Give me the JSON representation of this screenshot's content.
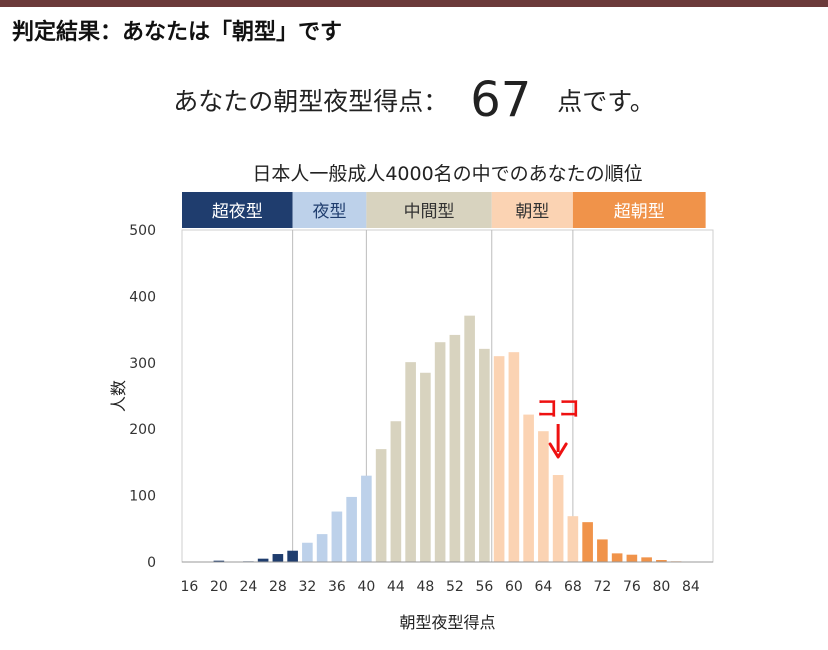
{
  "header": {
    "title": "判定結果：あなたは「朝型」です"
  },
  "score": {
    "prefix": "あなたの朝型夜型得点：",
    "value": "67",
    "suffix": "点です。"
  },
  "chart_data": {
    "type": "bar",
    "title": "日本人一般成人4000名の中でのあなたの順位",
    "xlabel": "朝型夜型得点",
    "ylabel": "人数",
    "ylim": [
      0,
      500
    ],
    "yticks": [
      0,
      100,
      200,
      300,
      400,
      500
    ],
    "x": [
      16,
      18,
      20,
      22,
      24,
      26,
      28,
      30,
      32,
      34,
      36,
      38,
      40,
      42,
      44,
      46,
      48,
      50,
      52,
      54,
      56,
      58,
      60,
      62,
      64,
      66,
      68,
      70,
      72,
      74,
      76,
      78,
      80,
      82,
      84,
      86
    ],
    "xtick_labels": [
      "16",
      "20",
      "24",
      "28",
      "32",
      "36",
      "40",
      "44",
      "48",
      "52",
      "56",
      "60",
      "64",
      "68",
      "72",
      "76",
      "80",
      "84"
    ],
    "values": [
      0,
      0,
      2,
      0,
      1,
      5,
      12,
      17,
      29,
      42,
      76,
      98,
      130,
      170,
      212,
      301,
      285,
      331,
      342,
      371,
      321,
      310,
      316,
      222,
      197,
      131,
      69,
      60,
      34,
      13,
      11,
      7,
      3,
      1,
      0,
      0
    ],
    "categories": [
      {
        "label": "超夜型",
        "from": 16,
        "to": 31,
        "color": "#1f3d6e",
        "text_color": "#ffffff"
      },
      {
        "label": "夜型",
        "from": 31,
        "to": 41,
        "color": "#bdd1ea",
        "text_color": "#1f3d6e"
      },
      {
        "label": "中間型",
        "from": 41,
        "to": 58,
        "color": "#d8d3bf",
        "text_color": "#333333"
      },
      {
        "label": "朝型",
        "from": 58,
        "to": 69,
        "color": "#fbd3b3",
        "text_color": "#333333"
      },
      {
        "label": "超朝型",
        "from": 69,
        "to": 87,
        "color": "#f0934a",
        "text_color": "#ffffff"
      }
    ],
    "marker": {
      "label": "ココ",
      "x": 66,
      "color": "#ee1111"
    },
    "grid": false
  }
}
